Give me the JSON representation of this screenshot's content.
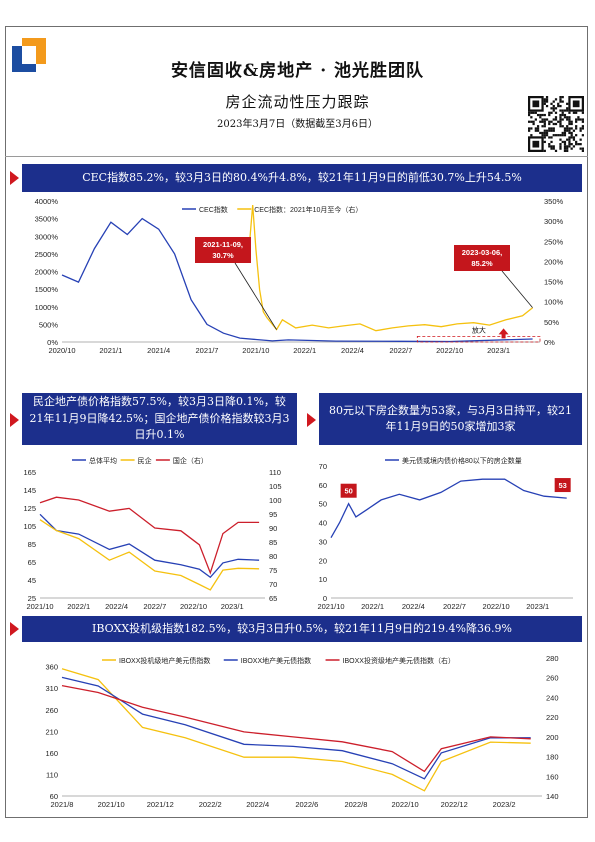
{
  "header": {
    "title": "安信固收&房地产 · 池光胜团队",
    "subtitle": "房企流动性压力跟踪",
    "date": "2023年3月7日（数据截至3月6日）"
  },
  "colors": {
    "navy": "#1c2f8c",
    "accent_red": "#d0181f",
    "blue_series": "#2741b5",
    "yellow_series": "#f5c10f",
    "red_series": "#cc1f2b"
  },
  "icons": [
    "logo-icon",
    "qr-code-icon",
    "triangle-arrow-icon",
    "up-arrow-icon"
  ],
  "sections": {
    "cec": {
      "banner": "CEC指数85.2%，较3月3日的80.4%升4.8%，较21年11月9日的前低30.7%上升54.5%",
      "chart_data": {
        "type": "line",
        "legend": [
          "CEC指数",
          "CEC指数：2021年10月至今（右）"
        ],
        "x_ticks": [
          "2020/10",
          "2021/1",
          "2021/4",
          "2021/7",
          "2021/10",
          "2022/1",
          "2022/4",
          "2022/7",
          "2022/10",
          "2023/1"
        ],
        "y_left_ticks": [
          "0%",
          "500%",
          "1000%",
          "1500%",
          "2000%",
          "2500%",
          "3000%",
          "3500%",
          "4000%"
        ],
        "y_right_ticks": [
          "0%",
          "50%",
          "100%",
          "150%",
          "200%",
          "250%",
          "300%",
          "350%"
        ],
        "ylim_left": [
          0,
          4000
        ],
        "ylim_right": [
          0,
          350
        ],
        "annotations": [
          {
            "label": "2021-11-09,\n30.7%",
            "x": "2021-11-09",
            "y": 30.7
          },
          {
            "label": "2023-03-06,\n85.2%",
            "x": "2023-03-06",
            "y": 85.2
          }
        ],
        "marker_text": "放大",
        "series": [
          {
            "name": "CEC指数",
            "axis": "left",
            "x": [
              "2020-10-01",
              "2020-11-01",
              "2020-12-01",
              "2021-01-01",
              "2021-02-01",
              "2021-03-01",
              "2021-04-01",
              "2021-05-01",
              "2021-06-01",
              "2021-07-01",
              "2021-08-01",
              "2021-09-01",
              "2021-10-01",
              "2021-11-01",
              "2021-12-01",
              "2022-03-01",
              "2022-07-01",
              "2022-10-01",
              "2023-03-06"
            ],
            "values": [
              1900,
              1700,
              2650,
              3400,
              3050,
              3500,
              3200,
              2500,
              1200,
              500,
              250,
              110,
              70,
              31,
              60,
              25,
              20,
              15,
              85
            ]
          },
          {
            "name": "CEC指数：2021年10月至今（右）",
            "axis": "right",
            "x": [
              "2021-09-20",
              "2021-09-25",
              "2021-10-01",
              "2021-10-08",
              "2021-10-15",
              "2021-10-22",
              "2021-11-09",
              "2021-11-20",
              "2021-12-15",
              "2022-01-15",
              "2022-02-15",
              "2022-03-15",
              "2022-04-15",
              "2022-05-15",
              "2022-06-15",
              "2022-07-15",
              "2022-08-15",
              "2022-09-15",
              "2022-10-15",
              "2022-11-15",
              "2022-12-15",
              "2023-01-15",
              "2023-02-15",
              "2023-03-06"
            ],
            "values": [
              260,
              340,
              230,
              130,
              75,
              60,
              31,
              55,
              35,
              42,
              35,
              40,
              45,
              28,
              35,
              40,
              43,
              38,
              45,
              48,
              42,
              55,
              65,
              85
            ]
          }
        ]
      }
    },
    "private_bond": {
      "banner": "民企地产债价格指数57.5%，较3月3日降0.1%，较21年11月9日降42.5%；国企地产债价格指数较3月3日升0.1%",
      "chart_data": {
        "type": "line",
        "legend": [
          "总体平均",
          "民企",
          "国企（右）"
        ],
        "x_ticks": [
          "2021/10",
          "2022/1",
          "2022/4",
          "2022/7",
          "2022/10",
          "2023/1"
        ],
        "y_left_ticks": [
          "25",
          "45",
          "65",
          "85",
          "105",
          "125",
          "145",
          "165"
        ],
        "y_right_ticks": [
          "65",
          "70",
          "75",
          "80",
          "85",
          "90",
          "95",
          "100",
          "105",
          "110"
        ],
        "ylim_left": [
          25,
          165
        ],
        "ylim_right": [
          65,
          110
        ],
        "series": [
          {
            "name": "总体平均",
            "axis": "left",
            "x": [
              "2021-10-01",
              "2021-11-09",
              "2022-01-01",
              "2022-03-15",
              "2022-05-01",
              "2022-07-01",
              "2022-09-01",
              "2022-10-15",
              "2022-11-10",
              "2022-12-10",
              "2023-01-15",
              "2023-03-06"
            ],
            "values": [
              118,
              100,
              96,
              79,
              85,
              67,
              62,
              57,
              48,
              64,
              68,
              67
            ]
          },
          {
            "name": "民企",
            "axis": "left",
            "x": [
              "2021-10-01",
              "2021-11-09",
              "2022-01-01",
              "2022-03-15",
              "2022-05-01",
              "2022-07-01",
              "2022-09-01",
              "2022-10-15",
              "2022-11-10",
              "2022-12-10",
              "2023-01-15",
              "2023-03-06"
            ],
            "values": [
              112,
              100,
              91,
              67,
              76,
              55,
              50,
              40,
              34,
              56,
              58,
              57.5
            ]
          },
          {
            "name": "国企（右）",
            "axis": "right",
            "x": [
              "2021-10-01",
              "2021-11-09",
              "2022-01-01",
              "2022-03-15",
              "2022-05-01",
              "2022-07-01",
              "2022-09-01",
              "2022-10-15",
              "2022-11-10",
              "2022-12-10",
              "2023-01-15",
              "2023-03-06"
            ],
            "values": [
              99,
              101,
              100,
              96,
              97,
              90,
              89,
              84,
              74,
              88,
              92,
              92
            ]
          }
        ]
      }
    },
    "below80": {
      "banner": "80元以下房企数量为53家，与3月3日持平，较21年11月9日的50家增加3家",
      "chart_data": {
        "type": "line",
        "legend": [
          "美元债或境内债价格80以下的房企数量"
        ],
        "x_ticks": [
          "2021/10",
          "2022/1",
          "2022/4",
          "2022/7",
          "2022/10",
          "2023/1"
        ],
        "y_ticks": [
          "0",
          "10",
          "20",
          "30",
          "40",
          "50",
          "60",
          "70"
        ],
        "ylim": [
          0,
          70
        ],
        "annotations": [
          {
            "label": "50",
            "x": "2021-11-09",
            "y": 50
          },
          {
            "label": "53",
            "x": "2023-03-06",
            "y": 53
          }
        ],
        "series": [
          {
            "name": "美元债或境内债价格80以下的房企数量",
            "x": [
              "2021-10-01",
              "2021-10-20",
              "2021-11-09",
              "2021-11-25",
              "2021-12-20",
              "2022-01-20",
              "2022-03-01",
              "2022-04-15",
              "2022-06-01",
              "2022-07-15",
              "2022-09-01",
              "2022-10-20",
              "2022-12-01",
              "2023-01-15",
              "2023-03-06"
            ],
            "values": [
              32,
              40,
              50,
              43,
              47,
              52,
              55,
              52,
              56,
              62,
              63,
              63,
              57,
              54,
              53
            ]
          }
        ]
      }
    },
    "iboxx": {
      "banner": "IBOXX投机级指数182.5%，较3月3日升0.5%，较21年11月9日的219.4%降36.9%",
      "chart_data": {
        "type": "line",
        "legend": [
          "IBOXX投机级地产美元债指数",
          "IBOXX地产美元债指数",
          "IBOXX投资级地产美元债指数（右）"
        ],
        "x_ticks": [
          "2021/8",
          "2021/10",
          "2021/12",
          "2022/2",
          "2022/4",
          "2022/6",
          "2022/8",
          "2022/10",
          "2022/12",
          "2023/2"
        ],
        "y_left_ticks": [
          "60",
          "110",
          "160",
          "210",
          "260",
          "310",
          "360"
        ],
        "y_right_ticks": [
          "140",
          "160",
          "180",
          "200",
          "220",
          "240",
          "260",
          "280"
        ],
        "ylim_left": [
          60,
          380
        ],
        "ylim_right": [
          140,
          280
        ],
        "series": [
          {
            "name": "IBOXX投机级地产美元债指数",
            "axis": "left",
            "x": [
              "2021-08-01",
              "2021-09-15",
              "2021-11-09",
              "2022-01-01",
              "2022-03-15",
              "2022-05-15",
              "2022-07-15",
              "2022-09-15",
              "2022-10-25",
              "2022-11-15",
              "2023-01-15",
              "2023-03-06"
            ],
            "values": [
              355,
              330,
              219,
              195,
              150,
              150,
              140,
              110,
              72,
              140,
              185,
              182.5
            ]
          },
          {
            "name": "IBOXX地产美元债指数",
            "axis": "left",
            "x": [
              "2021-08-01",
              "2021-09-15",
              "2021-11-09",
              "2022-01-01",
              "2022-03-15",
              "2022-05-15",
              "2022-07-15",
              "2022-09-15",
              "2022-10-25",
              "2022-11-15",
              "2023-01-15",
              "2023-03-06"
            ],
            "values": [
              335,
              315,
              250,
              225,
              180,
              175,
              165,
              135,
              100,
              160,
              195,
              195
            ]
          },
          {
            "name": "IBOXX投资级地产美元债指数（右）",
            "axis": "right",
            "x": [
              "2021-08-01",
              "2021-09-15",
              "2021-11-09",
              "2022-01-01",
              "2022-03-15",
              "2022-05-15",
              "2022-07-15",
              "2022-09-15",
              "2022-10-25",
              "2022-11-15",
              "2023-01-15",
              "2023-03-06"
            ],
            "values": [
              252,
              245,
              230,
              220,
              205,
              200,
              195,
              185,
              165,
              188,
              200,
              198
            ]
          }
        ]
      }
    }
  }
}
